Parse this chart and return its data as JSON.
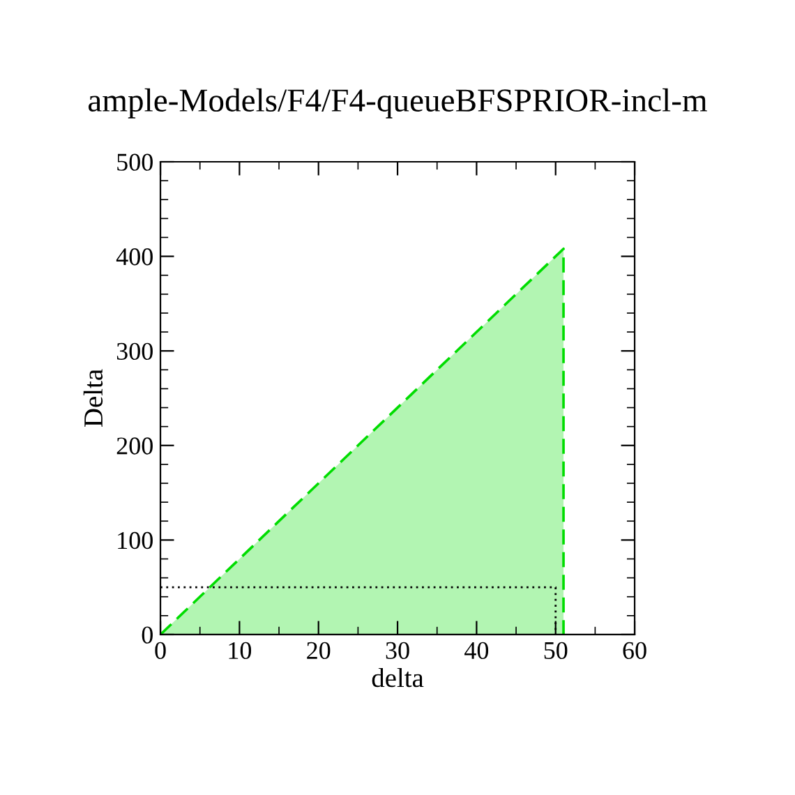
{
  "chart_data": {
    "type": "area",
    "title": "ample-Models/F4/F4-queueBFSPRIOR-incl-m",
    "xlabel": "delta",
    "ylabel": "Delta",
    "series": [
      {
        "color": "#00dd00",
        "line_style": "dashed",
        "x": [
          0,
          51,
          51
        ],
        "values": [
          0,
          408,
          0
        ]
      },
      {
        "type": "line",
        "color": "#000000",
        "line_style": "dotted",
        "x": [
          0,
          50,
          50
        ],
        "values": [
          50,
          50,
          0
        ]
      }
    ],
    "xlim": [
      0,
      60
    ],
    "xticks": [
      0,
      10,
      20,
      30,
      40,
      50,
      60
    ],
    "ylim": [
      0,
      500
    ],
    "yticks": [
      0,
      100,
      200,
      300,
      400,
      500
    ],
    "grid": false,
    "legend": false
  }
}
